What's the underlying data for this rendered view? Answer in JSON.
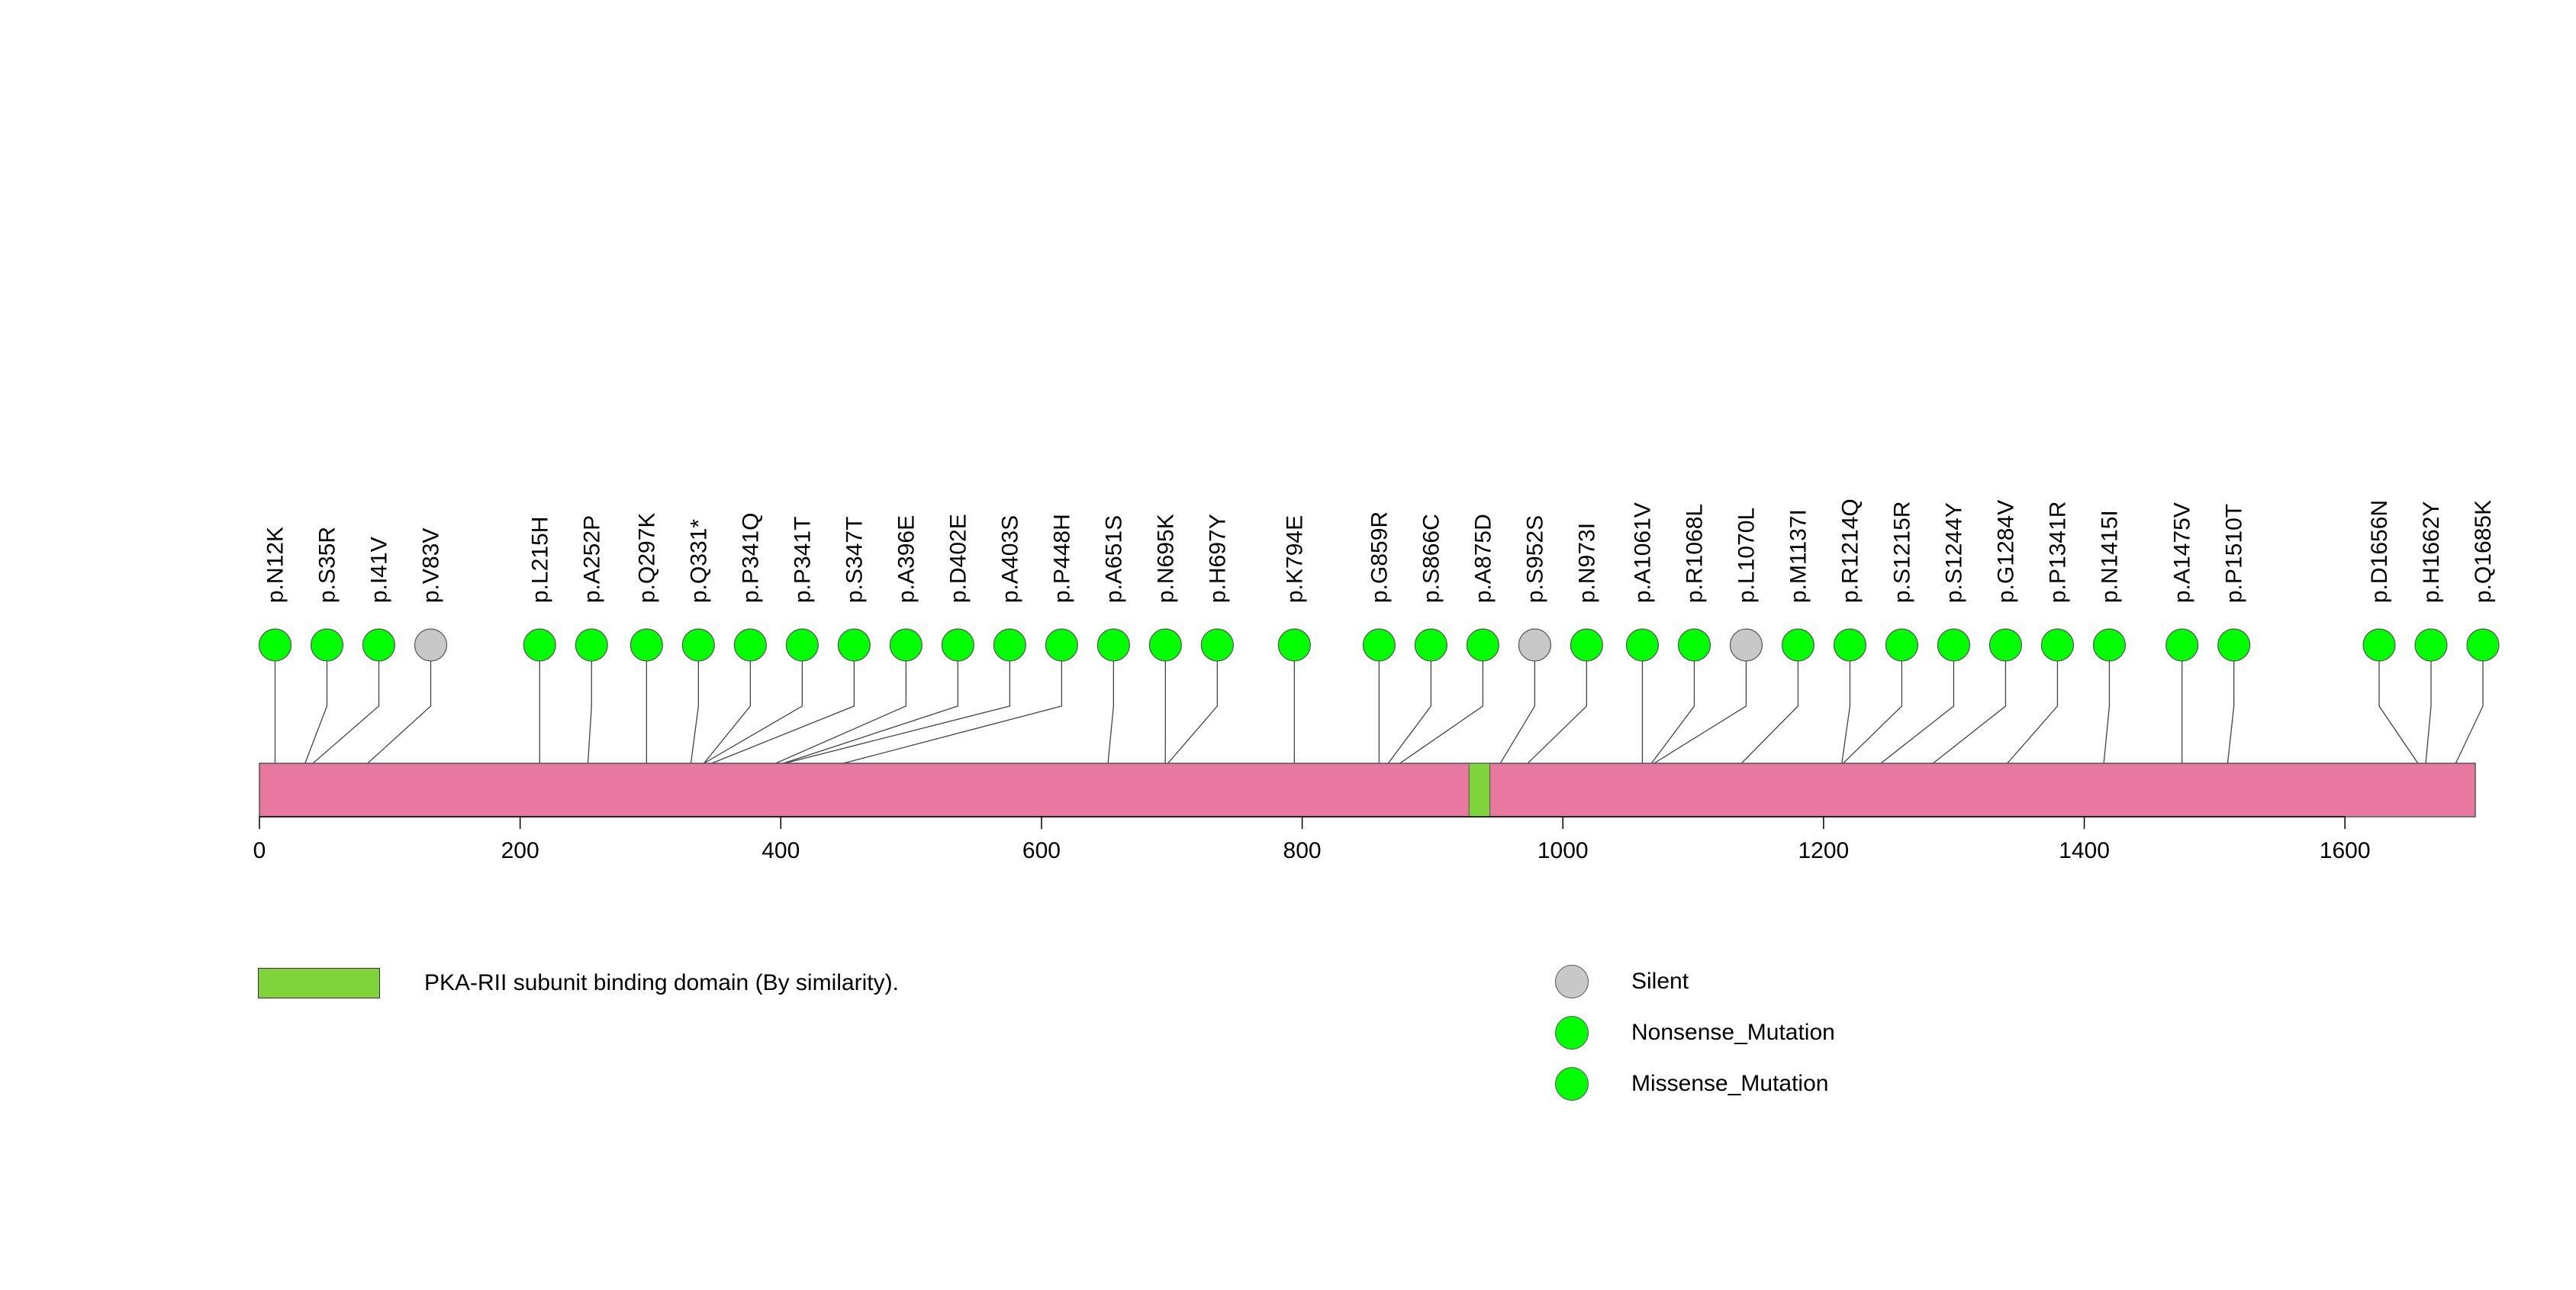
{
  "chart_data": {
    "type": "lollipop",
    "title": "",
    "protein_length": 1700,
    "xlim": [
      0,
      1700
    ],
    "xticks": [
      0,
      200,
      400,
      600,
      800,
      1000,
      1200,
      1400,
      1600
    ],
    "colors": {
      "protein": "#E8789F",
      "domain": "#7FD43B",
      "Silent": "#C8C8C8",
      "Nonsense_Mutation": "#00FF00",
      "Missense_Mutation": "#00FF00"
    },
    "domains": [
      {
        "name": "PKA-RII subunit binding domain (By similarity).",
        "start": 928,
        "end": 944
      }
    ],
    "mutations": [
      {
        "label": "p.N12K",
        "position": 12,
        "type": "Missense_Mutation"
      },
      {
        "label": "p.S35R",
        "position": 35,
        "type": "Missense_Mutation"
      },
      {
        "label": "p.I41V",
        "position": 41,
        "type": "Missense_Mutation"
      },
      {
        "label": "p.V83V",
        "position": 83,
        "type": "Silent"
      },
      {
        "label": "p.L215H",
        "position": 215,
        "type": "Missense_Mutation"
      },
      {
        "label": "p.A252P",
        "position": 252,
        "type": "Missense_Mutation"
      },
      {
        "label": "p.Q297K",
        "position": 297,
        "type": "Missense_Mutation"
      },
      {
        "label": "p.Q331*",
        "position": 331,
        "type": "Nonsense_Mutation"
      },
      {
        "label": "p.P341Q",
        "position": 341,
        "type": "Missense_Mutation"
      },
      {
        "label": "p.P341T",
        "position": 341,
        "type": "Missense_Mutation"
      },
      {
        "label": "p.S347T",
        "position": 347,
        "type": "Missense_Mutation"
      },
      {
        "label": "p.A396E",
        "position": 396,
        "type": "Missense_Mutation"
      },
      {
        "label": "p.D402E",
        "position": 402,
        "type": "Missense_Mutation"
      },
      {
        "label": "p.A403S",
        "position": 403,
        "type": "Missense_Mutation"
      },
      {
        "label": "p.P448H",
        "position": 448,
        "type": "Missense_Mutation"
      },
      {
        "label": "p.A651S",
        "position": 651,
        "type": "Missense_Mutation"
      },
      {
        "label": "p.N695K",
        "position": 695,
        "type": "Missense_Mutation"
      },
      {
        "label": "p.H697Y",
        "position": 697,
        "type": "Missense_Mutation"
      },
      {
        "label": "p.K794E",
        "position": 794,
        "type": "Missense_Mutation"
      },
      {
        "label": "p.G859R",
        "position": 859,
        "type": "Missense_Mutation"
      },
      {
        "label": "p.S866C",
        "position": 866,
        "type": "Missense_Mutation"
      },
      {
        "label": "p.A875D",
        "position": 875,
        "type": "Missense_Mutation"
      },
      {
        "label": "p.S952S",
        "position": 952,
        "type": "Silent"
      },
      {
        "label": "p.N973I",
        "position": 973,
        "type": "Missense_Mutation"
      },
      {
        "label": "p.A1061V",
        "position": 1061,
        "type": "Missense_Mutation"
      },
      {
        "label": "p.R1068L",
        "position": 1068,
        "type": "Missense_Mutation"
      },
      {
        "label": "p.L1070L",
        "position": 1070,
        "type": "Silent"
      },
      {
        "label": "p.M1137I",
        "position": 1137,
        "type": "Missense_Mutation"
      },
      {
        "label": "p.R1214Q",
        "position": 1214,
        "type": "Missense_Mutation"
      },
      {
        "label": "p.S1215R",
        "position": 1215,
        "type": "Missense_Mutation"
      },
      {
        "label": "p.S1244Y",
        "position": 1244,
        "type": "Missense_Mutation"
      },
      {
        "label": "p.G1284V",
        "position": 1284,
        "type": "Missense_Mutation"
      },
      {
        "label": "p.P1341R",
        "position": 1341,
        "type": "Missense_Mutation"
      },
      {
        "label": "p.N1415I",
        "position": 1415,
        "type": "Missense_Mutation"
      },
      {
        "label": "p.A1475V",
        "position": 1475,
        "type": "Missense_Mutation"
      },
      {
        "label": "p.P1510T",
        "position": 1510,
        "type": "Missense_Mutation"
      },
      {
        "label": "p.D1656N",
        "position": 1656,
        "type": "Missense_Mutation"
      },
      {
        "label": "p.H1662Y",
        "position": 1662,
        "type": "Missense_Mutation"
      },
      {
        "label": "p.Q1685K",
        "position": 1685,
        "type": "Missense_Mutation"
      }
    ],
    "legend": {
      "domain_label": "PKA-RII subunit binding domain (By similarity).",
      "mutation_types": [
        "Silent",
        "Nonsense_Mutation",
        "Missense_Mutation"
      ]
    }
  }
}
